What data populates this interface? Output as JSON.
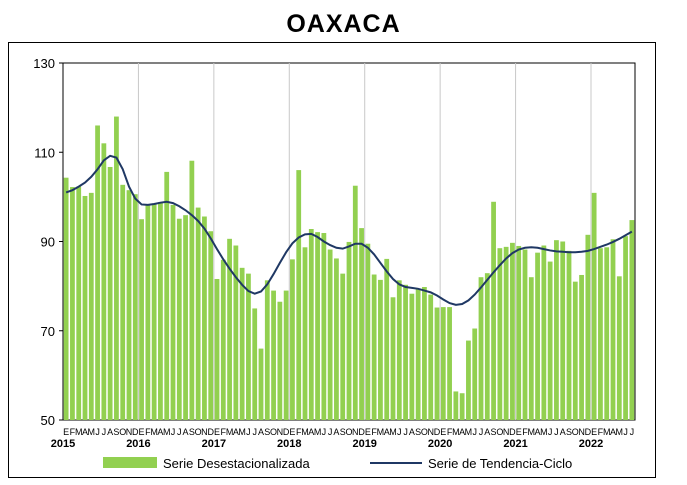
{
  "chart_data": {
    "type": "bar",
    "title": "OAXACA",
    "ylim": [
      50,
      130
    ],
    "yticks": [
      50,
      70,
      90,
      110,
      130
    ],
    "start": "2015-01",
    "month_letters": [
      "E",
      "F",
      "M",
      "A",
      "M",
      "J",
      "J",
      "A",
      "S",
      "O",
      "N",
      "D"
    ],
    "years": [
      "2015",
      "2016",
      "2017",
      "2018",
      "2019",
      "2020",
      "2021",
      "2022"
    ],
    "grid": "vertical",
    "legend_position": "bottom",
    "series": [
      {
        "name": "Serie Desestacionalizada",
        "type": "bar",
        "color": "#92d050",
        "values": [
          104.3,
          102.2,
          102.3,
          100.2,
          100.9,
          116.0,
          112.0,
          106.7,
          118.0,
          102.7,
          101.5,
          100.6,
          95.0,
          98.1,
          98.5,
          98.8,
          105.6,
          98.2,
          95.1,
          95.9,
          108.1,
          97.6,
          95.6,
          92.3,
          81.6,
          85.9,
          90.6,
          89.1,
          84.1,
          82.8,
          75.0,
          66.0,
          81.3,
          79.0,
          76.5,
          79.0,
          86.0,
          106.0,
          88.7,
          92.8,
          92.1,
          91.9,
          88.2,
          86.2,
          82.8,
          89.9,
          102.5,
          93.0,
          89.5,
          82.6,
          81.4,
          86.1,
          77.5,
          81.3,
          80.3,
          78.3,
          79.3,
          79.8,
          78.1,
          75.2,
          75.3,
          75.3,
          56.4,
          56.0,
          67.8,
          70.5,
          82.0,
          82.9,
          98.9,
          88.5,
          88.8,
          89.7,
          89.0,
          88.2,
          82.0,
          87.5,
          89.1,
          85.5,
          90.3,
          90.0,
          87.9,
          81.0,
          82.5,
          91.5,
          100.9,
          88.5,
          88.7,
          90.5,
          82.2,
          91.2,
          94.8
        ]
      },
      {
        "name": "Serie de Tendencia-Ciclo",
        "type": "line",
        "color": "#1f3864",
        "values": [
          101,
          101.5,
          102.3,
          103.2,
          104.5,
          106.2,
          108.2,
          109.2,
          108.8,
          106.2,
          102.3,
          99.6,
          98.3,
          98.2,
          98.4,
          98.7,
          98.9,
          98.6,
          97.9,
          97,
          95.9,
          94.6,
          92.9,
          90.7,
          88.3,
          86,
          83.9,
          82,
          80.3,
          78.9,
          78.3,
          78.8,
          80.4,
          82.7,
          85.2,
          87.6,
          89.6,
          90.9,
          91.6,
          91.7,
          91,
          90,
          89.2,
          88.6,
          88.4,
          88.9,
          89.5,
          89.5,
          88.6,
          87.1,
          85.2,
          83.3,
          81.6,
          80.4,
          79.8,
          79.6,
          79.4,
          79,
          78.6,
          77.9,
          77,
          76.2,
          75.8,
          76,
          76.8,
          78.1,
          79.7,
          81.4,
          83.1,
          84.7,
          86.2,
          87.4,
          88.2,
          88.6,
          88.7,
          88.6,
          88.3,
          88,
          87.8,
          87.7,
          87.6,
          87.6,
          87.7,
          87.9,
          88.3,
          88.8,
          89.3,
          89.9,
          90.6,
          91.4,
          92.2
        ]
      }
    ]
  }
}
